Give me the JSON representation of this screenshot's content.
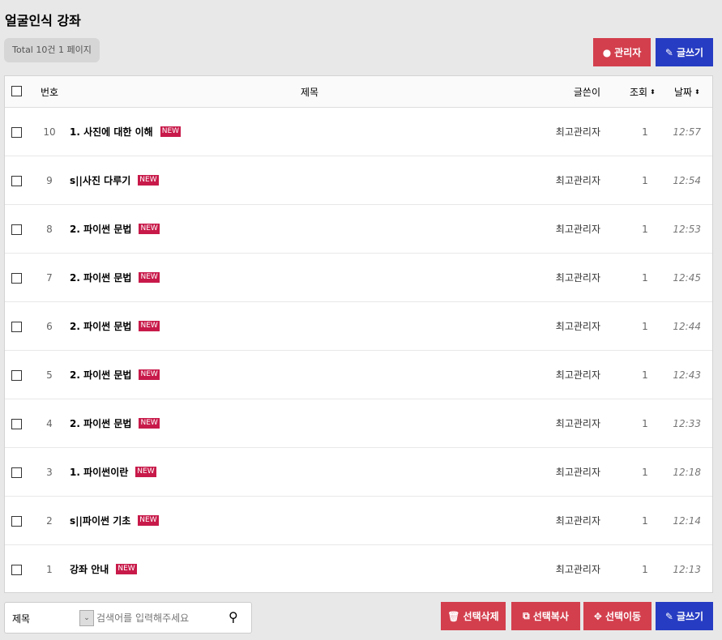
{
  "board_title": "얼굴인식 강좌",
  "total_label": "Total 10건 1 페이지",
  "top_buttons": {
    "admin": "관리자",
    "write": "글쓰기"
  },
  "columns": {
    "num": "번호",
    "title": "제목",
    "author": "글쓴이",
    "views": "조회",
    "date": "날짜"
  },
  "new_badge": "NEW",
  "rows": [
    {
      "num": "10",
      "title": "1. 사진에 대한 이해",
      "author": "최고관리자",
      "views": "1",
      "date": "12:57"
    },
    {
      "num": "9",
      "title": "s||사진 다루기",
      "author": "최고관리자",
      "views": "1",
      "date": "12:54"
    },
    {
      "num": "8",
      "title": "2. 파이썬 문법",
      "author": "최고관리자",
      "views": "1",
      "date": "12:53"
    },
    {
      "num": "7",
      "title": "2. 파이썬 문법",
      "author": "최고관리자",
      "views": "1",
      "date": "12:45"
    },
    {
      "num": "6",
      "title": "2. 파이썬 문법",
      "author": "최고관리자",
      "views": "1",
      "date": "12:44"
    },
    {
      "num": "5",
      "title": "2. 파이썬 문법",
      "author": "최고관리자",
      "views": "1",
      "date": "12:43"
    },
    {
      "num": "4",
      "title": "2. 파이썬 문법",
      "author": "최고관리자",
      "views": "1",
      "date": "12:33"
    },
    {
      "num": "3",
      "title": "1. 파이썬이란",
      "author": "최고관리자",
      "views": "1",
      "date": "12:18"
    },
    {
      "num": "2",
      "title": "s||파이썬 기초",
      "author": "최고관리자",
      "views": "1",
      "date": "12:14"
    },
    {
      "num": "1",
      "title": "강좌 안내",
      "author": "최고관리자",
      "views": "1",
      "date": "12:13"
    }
  ],
  "search": {
    "field": "제목",
    "placeholder": "검색어를 입력해주세요"
  },
  "bottom_buttons": {
    "delete": "선택삭제",
    "copy": "선택복사",
    "move": "선택이동",
    "write": "글쓰기"
  },
  "colors": {
    "red": "#d33f4d",
    "blue": "#263cc2",
    "new_badge": "#c81a4a"
  }
}
